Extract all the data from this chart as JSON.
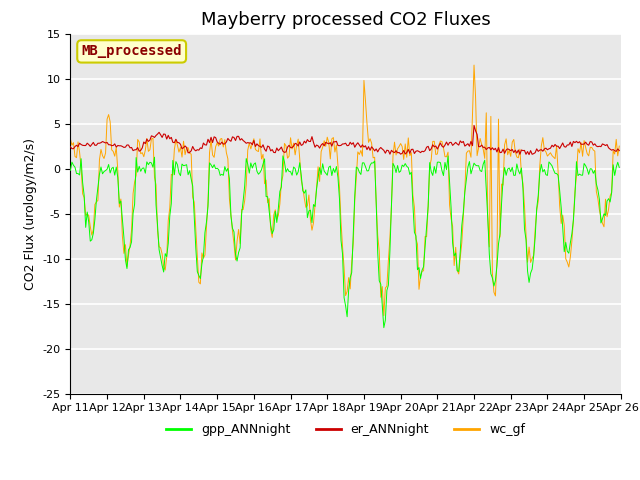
{
  "title": "Mayberry processed CO2 Fluxes",
  "ylabel": "CO2 Flux (urology/m2/s)",
  "ylim": [
    -25,
    15
  ],
  "yticks": [
    -25,
    -20,
    -15,
    -10,
    -5,
    0,
    5,
    10,
    15
  ],
  "xlabel_ticks": [
    0,
    24,
    48,
    72,
    96,
    120,
    144,
    168,
    192,
    216,
    240,
    264,
    288,
    312,
    336,
    360
  ],
  "xlabel_labels": [
    "Apr 11",
    "Apr 12",
    "Apr 13",
    "Apr 14",
    "Apr 15",
    "Apr 16",
    "Apr 17",
    "Apr 18",
    "Apr 19",
    "Apr 20",
    "Apr 21",
    "Apr 22",
    "Apr 23",
    "Apr 24",
    "Apr 25",
    "Apr 26"
  ],
  "legend_labels": [
    "gpp_ANNnight",
    "er_ANNnight",
    "wc_gf"
  ],
  "line_colors": [
    "#00ff00",
    "#cc0000",
    "#ffa500"
  ],
  "annotation_text": "MB_processed",
  "annotation_color": "#8b0000",
  "annotation_bg": "#ffffcc",
  "annotation_edge": "#cccc00",
  "bg_color": "#e8e8e8",
  "title_fontsize": 13,
  "axis_fontsize": 9,
  "tick_fontsize": 8,
  "legend_fontsize": 9
}
